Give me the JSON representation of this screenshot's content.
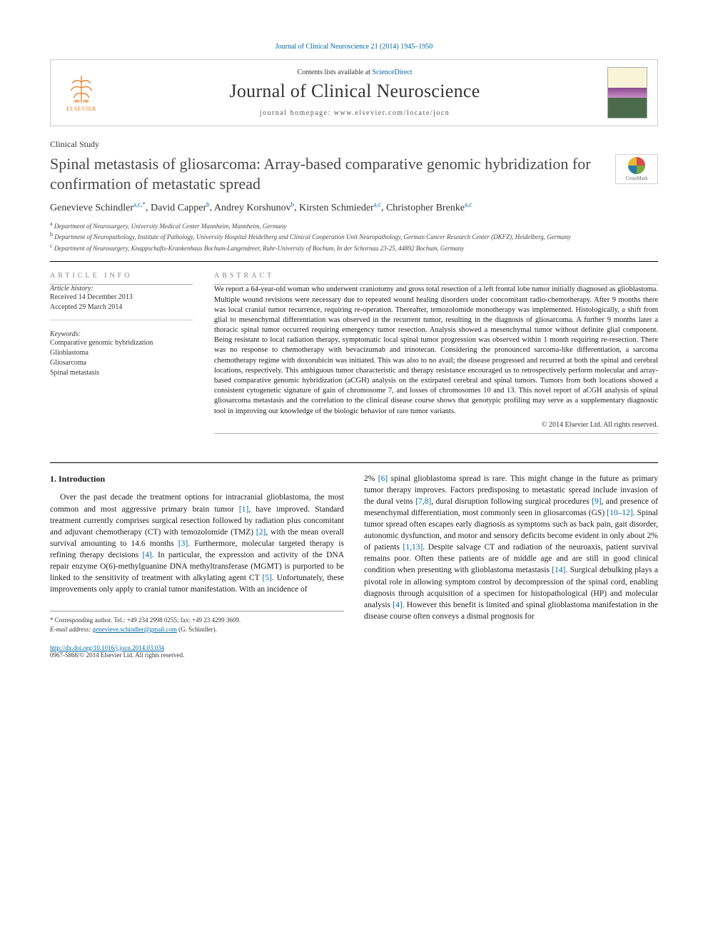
{
  "citation": "Journal of Clinical Neuroscience 21 (2014) 1945–1950",
  "header": {
    "contents_prefix": "Contents lists available at ",
    "contents_link": "ScienceDirect",
    "journal_name": "Journal of Clinical Neuroscience",
    "homepage_label": "journal homepage: www.elsevier.com/locate/jocn",
    "elsevier_text": "ELSEVIER"
  },
  "article": {
    "type": "Clinical Study",
    "title": "Spinal metastasis of gliosarcoma: Array-based comparative genomic hybridization for confirmation of metastatic spread",
    "crossmark_label": "CrossMark"
  },
  "authors": [
    {
      "name": "Genevieve Schindler",
      "sup": "a,c,*"
    },
    {
      "name": "David Capper",
      "sup": "b"
    },
    {
      "name": "Andrey Korshunov",
      "sup": "b"
    },
    {
      "name": "Kirsten Schmieder",
      "sup": "a,c"
    },
    {
      "name": "Christopher Brenke",
      "sup": "a,c"
    }
  ],
  "affiliations": [
    {
      "marker": "a",
      "text": "Department of Neurosurgery, University Medical Center Mannheim, Mannheim, Germany"
    },
    {
      "marker": "b",
      "text": "Department of Neuropathology, Institute of Pathology, University Hospital Heidelberg and Clinical Cooperation Unit Neuropathology, German Cancer Research Center (DKFZ), Heidelberg, Germany"
    },
    {
      "marker": "c",
      "text": "Department of Neurosurgery, Knappschafts-Krankenhaus Bochum-Langendreer, Ruhr-University of Bochum, In der Schornau 23-25, 44892 Bochum, Germany"
    }
  ],
  "article_info": {
    "heading": "ARTICLE INFO",
    "history_label": "Article history:",
    "received": "Received 14 December 2013",
    "accepted": "Accepted 29 March 2014",
    "keywords_label": "Keywords:",
    "keywords": [
      "Comparative genomic hybridization",
      "Glioblastoma",
      "Gliosarcoma",
      "Spinal metastasis"
    ]
  },
  "abstract": {
    "heading": "ABSTRACT",
    "text": "We report a 64-year-old woman who underwent craniotomy and gross total resection of a left frontal lobe tumor initially diagnosed as glioblastoma. Multiple wound revisions were necessary due to repeated wound healing disorders under concomitant radio-chemotherapy. After 9 months there was local cranial tumor recurrence, requiring re-operation. Thereafter, temozolomide monotherapy was implemented. Histologically, a shift from glial to mesenchymal differentiation was observed in the recurrent tumor, resulting in the diagnosis of gliosarcoma. A further 9 months later a thoracic spinal tumor occurred requiring emergency tumor resection. Analysis showed a mesenchymal tumor without definite glial component. Being resistant to local radiation therapy, symptomatic local spinal tumor progression was observed within 1 month requiring re-resection. There was no response to chemotherapy with bevacizumab and irinotecan. Considering the pronounced sarcoma-like differentiation, a sarcoma chemotherapy regime with doxorubicin was initiated. This was also to no avail; the disease progressed and recurred at both the spinal and cerebral locations, respectively. This ambiguous tumor characteristic and therapy resistance encouraged us to retrospectively perform molecular and array-based comparative genomic hybridization (aCGH) analysis on the extirpated cerebral and spinal tumors. Tumors from both locations showed a consistent cytogenetic signature of gain of chromosome 7, and losses of chromosomes 10 and 13. This novel report of aCGH analysis of spinal gliosarcoma metastasis and the correlation to the clinical disease course shows that genotypic profiling may serve as a supplementary diagnostic tool in improving our knowledge of the biologic behavior of rare tumor variants.",
    "copyright": "© 2014 Elsevier Ltd. All rights reserved."
  },
  "body": {
    "section_number": "1.",
    "section_title": "Introduction",
    "col1_html": "Over the past decade the treatment options for intracranial glioblastoma, the most common and most aggressive primary brain tumor <span class='ref-link'>[1]</span>, have improved. Standard treatment currently comprises surgical resection followed by radiation plus concomitant and adjuvant chemotherapy (CT) with temozolomide (TMZ) <span class='ref-link'>[2]</span>, with the mean overall survival amounting to 14.6 months <span class='ref-link'>[3]</span>. Furthermore, molecular targeted therapy is refining therapy decisions <span class='ref-link'>[4]</span>. In particular, the expression and activity of the DNA repair enzyme O(6)-methylguanine DNA methyltransferase (MGMT) is purported to be linked to the sensitivity of treatment with alkylating agent CT <span class='ref-link'>[5]</span>. Unfortunately, these improvements only apply to cranial tumor manifestation. With an incidence of",
    "col2_html": "2% <span class='ref-link'>[6]</span> spinal glioblastoma spread is rare. This might change in the future as primary tumor therapy improves. Factors predisposing to metastatic spread include invasion of the dural veins <span class='ref-link'>[7,8]</span>, dural disruption following surgical procedures <span class='ref-link'>[9]</span>, and presence of mesenchymal differentiation, most commonly seen in gliosarcomas (GS) <span class='ref-link'>[10–12]</span>. Spinal tumor spread often escapes early diagnosis as symptoms such as back pain, gait disorder, autonomic dysfunction, and motor and sensory deficits become evident in only about 2% of patients <span class='ref-link'>[1,13]</span>. Despite salvage CT and radiation of the neuroaxis, patient survival remains poor. Often these patients are of middle age and are still in good clinical condition when presenting with glioblastoma metastasis <span class='ref-link'>[14]</span>. Surgical debulking plays a pivotal role in allowing symptom control by decompression of the spinal cord, enabling diagnosis through acquisition of a specimen for histopathological (HP) and molecular analysis <span class='ref-link'>[4]</span>. However this benefit is limited and spinal glioblastoma manifestation in the disease course often conveys a dismal prognosis for"
  },
  "corresponding": {
    "line1": "* Corresponding author. Tel.: +49 234 2998 0255; fax: +49 23 4299 3609.",
    "email_label": "E-mail address: ",
    "email": "genevieve.schindler@gmail.com",
    "email_suffix": " (G. Schindler)."
  },
  "footer": {
    "doi": "http://dx.doi.org/10.1016/j.jocn.2014.03.034",
    "issn_copyright": "0967-5868/© 2014 Elsevier Ltd. All rights reserved."
  },
  "colors": {
    "link": "#0066a4",
    "elsevier_orange": "#e67817",
    "text": "#1a1a1a",
    "heading_gray": "#888888"
  }
}
